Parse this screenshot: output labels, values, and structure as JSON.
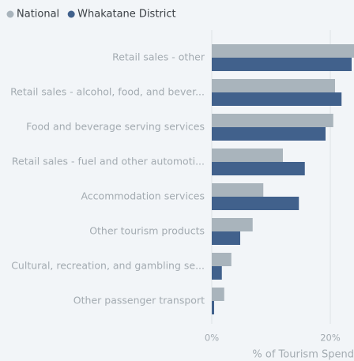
{
  "chart_data": {
    "type": "bar",
    "orientation": "horizontal",
    "categories": [
      "Retail sales - other",
      "Retail sales - alcohol, food, and bever...",
      "Food and beverage serving services",
      "Retail sales - fuel and other automoti...",
      "Accommodation services",
      "Other tourism products",
      "Cultural, recreation, and gambling se...",
      "Other passenger transport"
    ],
    "series": [
      {
        "name": "National",
        "color": "#a9b4bc",
        "values": [
          24.3,
          20.8,
          20.5,
          12.0,
          8.7,
          6.9,
          3.3,
          2.1
        ]
      },
      {
        "name": "Whakatane District",
        "color": "#41618c",
        "values": [
          23.6,
          21.9,
          19.2,
          15.7,
          14.7,
          4.8,
          1.7,
          0.4
        ]
      }
    ],
    "xlabel": "% of Tourism Spend",
    "xlim": [
      0,
      24
    ],
    "xticks": [
      {
        "value": 0,
        "label": "0%"
      },
      {
        "value": 20,
        "label": "20%"
      }
    ],
    "grid": true,
    "legend": "top-left"
  }
}
